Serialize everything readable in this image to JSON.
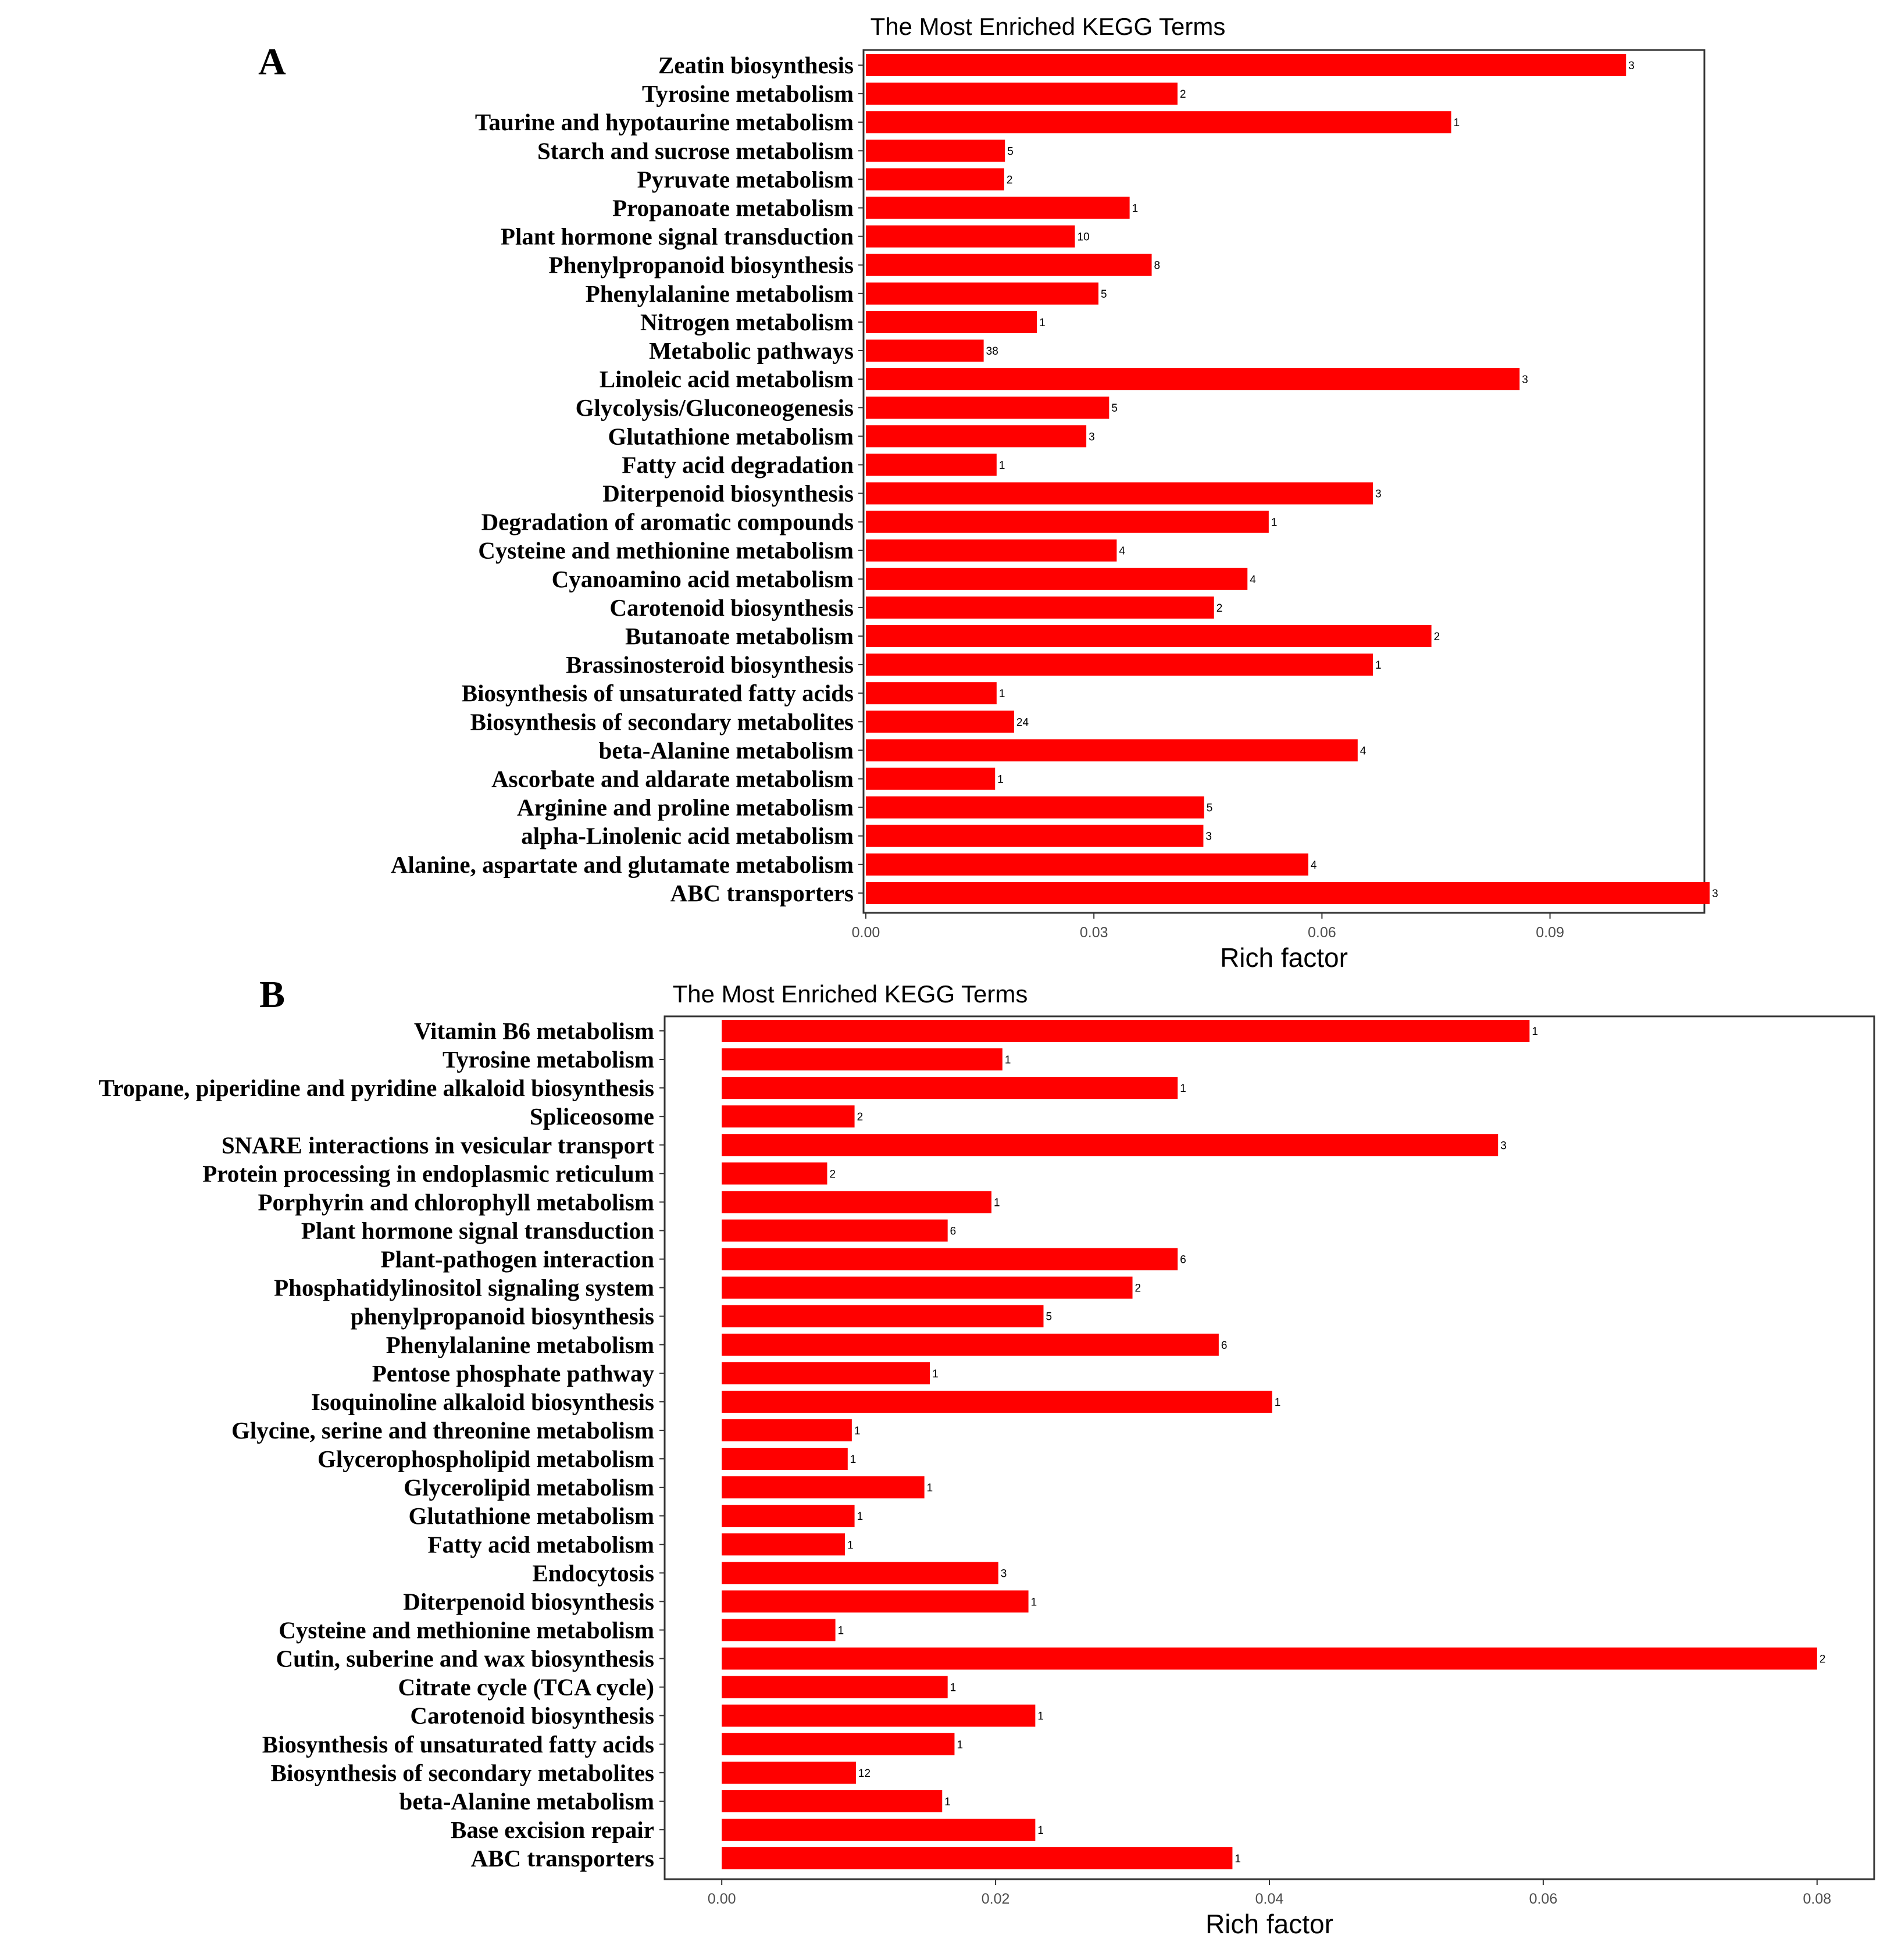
{
  "chart_data": [
    {
      "panel": "A",
      "type": "bar",
      "orientation": "horizontal",
      "title": "The Most Enriched KEGG Terms",
      "xlabel": "Rich factor",
      "ylabel": "",
      "xlim": [
        0,
        0.11
      ],
      "ticks": [
        0.0,
        0.03,
        0.06,
        0.09
      ],
      "tick_labels": [
        "0.00",
        "0.03",
        "0.06",
        "0.09"
      ],
      "bar_color": "#ff0000",
      "categories": [
        "Zeatin biosynthesis",
        "Tyrosine metabolism",
        "Taurine and hypotaurine metabolism",
        "Starch and sucrose metabolism",
        "Pyruvate metabolism",
        "Propanoate metabolism",
        "Plant hormone signal transduction",
        "Phenylpropanoid biosynthesis",
        "Phenylalanine metabolism",
        "Nitrogen metabolism",
        "Metabolic pathways",
        "Linoleic acid metabolism",
        "Glycolysis/Gluconeogenesis",
        "Glutathione metabolism",
        "Fatty acid degradation",
        "Diterpenoid biosynthesis",
        "Degradation of aromatic compounds",
        "Cysteine and methionine metabolism",
        "Cyanoamino acid metabolism",
        "Carotenoid biosynthesis",
        "Butanoate metabolism",
        "Brassinosteroid biosynthesis",
        "Biosynthesis of unsaturated fatty acids",
        "Biosynthesis of secondary metabolites",
        "beta-Alanine metabolism",
        "Ascorbate and aldarate metabolism",
        "Arginine and proline metabolism",
        "alpha-Linolenic acid metabolism",
        "Alanine, aspartate and glutamate metabolism",
        "ABC transporters"
      ],
      "values": [
        0.1,
        0.041,
        0.077,
        0.0183,
        0.0182,
        0.0347,
        0.0275,
        0.0376,
        0.0306,
        0.0225,
        0.0155,
        0.086,
        0.032,
        0.029,
        0.0172,
        0.0667,
        0.053,
        0.033,
        0.0502,
        0.0458,
        0.0744,
        0.0667,
        0.0172,
        0.0195,
        0.0647,
        0.017,
        0.0445,
        0.0444,
        0.0582,
        0.111
      ],
      "counts": [
        "3",
        "2",
        "1",
        "5",
        "2",
        "1",
        "10",
        "8",
        "5",
        "1",
        "38",
        "3",
        "5",
        "3",
        "1",
        "3",
        "1",
        "4",
        "4",
        "2",
        "2",
        "1",
        "1",
        "24",
        "4",
        "1",
        "5",
        "3",
        "4",
        "3"
      ]
    },
    {
      "panel": "B",
      "type": "bar",
      "orientation": "horizontal",
      "title": "The Most Enriched KEGG Terms",
      "xlabel": "Rich factor",
      "ylabel": "",
      "xlim": [
        -0.004,
        0.084
      ],
      "ticks": [
        0.0,
        0.02,
        0.04,
        0.06,
        0.08
      ],
      "tick_labels": [
        "0.00",
        "0.02",
        "0.04",
        "0.06",
        "0.08"
      ],
      "bar_color": "#ff0000",
      "categories": [
        "Vitamin B6 metabolism",
        "Tyrosine metabolism",
        "Tropane, piperidine and pyridine alkaloid biosynthesis",
        "Spliceosome",
        "SNARE interactions in vesicular transport",
        "Protein processing in endoplasmic reticulum",
        "Porphyrin and chlorophyll metabolism",
        "Plant hormone signal transduction",
        "Plant-pathogen interaction",
        "Phosphatidylinositol signaling system",
        "phenylpropanoid biosynthesis",
        "Phenylalanine metabolism",
        "Pentose phosphate pathway",
        "Isoquinoline alkaloid biosynthesis",
        "Glycine, serine and threonine metabolism",
        "Glycerophospholipid metabolism",
        "Glycerolipid metabolism",
        "Glutathione metabolism",
        "Fatty acid metabolism",
        "Endocytosis",
        "Diterpenoid biosynthesis",
        "Cysteine and methionine metabolism",
        "Cutin, suberine and wax biosynthesis",
        "Citrate cycle (TCA cycle)",
        "Carotenoid biosynthesis",
        "Biosynthesis of unsaturated fatty acids",
        "Biosynthesis of secondary metabolites",
        "beta-Alanine metabolism",
        "Base excision repair",
        "ABC transporters"
      ],
      "values": [
        0.059,
        0.0205,
        0.0333,
        0.0097,
        0.0567,
        0.0077,
        0.0197,
        0.0165,
        0.0333,
        0.03,
        0.0235,
        0.0363,
        0.0152,
        0.0402,
        0.0095,
        0.0092,
        0.0148,
        0.0097,
        0.009,
        0.0202,
        0.0224,
        0.0083,
        0.08,
        0.0165,
        0.0229,
        0.017,
        0.0098,
        0.0161,
        0.0229,
        0.0373
      ],
      "counts": [
        "1",
        "1",
        "1",
        "2",
        "3",
        "2",
        "1",
        "6",
        "6",
        "2",
        "5",
        "6",
        "1",
        "1",
        "1",
        "1",
        "1",
        "1",
        "1",
        "3",
        "1",
        "1",
        "2",
        "1",
        "1",
        "1",
        "12",
        "1",
        "1",
        "1"
      ]
    }
  ]
}
